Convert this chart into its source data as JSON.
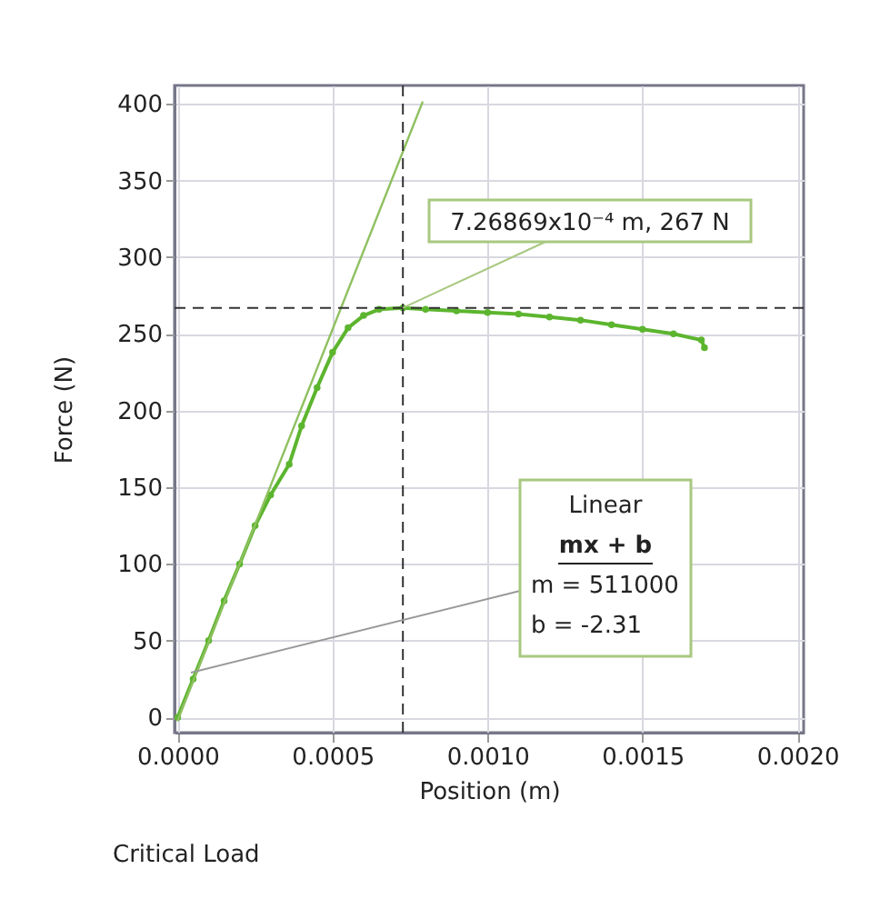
{
  "chart_data": {
    "type": "line",
    "xlabel": "Position (m)",
    "ylabel": "Force (N)",
    "xlim": [
      -1e-05,
      0.00202
    ],
    "ylim": [
      -10,
      412
    ],
    "xticks": [
      {
        "value": 0,
        "label": "0.0000"
      },
      0.0005,
      {
        "value": 0.001,
        "label": "0.0010"
      },
      0.0015,
      {
        "value": 0.002,
        "label": "0.0020"
      }
    ],
    "yticks": [
      0,
      50,
      100,
      150,
      200,
      250,
      300,
      350,
      400
    ],
    "grid": true,
    "marker": "circle",
    "line_style": "solid",
    "series": [
      {
        "color": "#5cb52e",
        "x": [
          0,
          5e-05,
          0.0001,
          0.00015,
          0.0002,
          0.00025,
          0.0003,
          0.00036,
          0.0004,
          0.00045,
          0.0005,
          0.00055,
          0.0006,
          0.00065,
          0.000727,
          0.0008,
          0.0009,
          0.001,
          0.0011,
          0.0012,
          0.0013,
          0.0014,
          0.0015,
          0.0016,
          0.00169,
          0.0017
        ],
        "values": [
          0,
          25,
          50,
          76,
          100,
          125,
          145,
          165,
          190,
          215,
          238,
          254,
          262,
          266,
          267,
          266,
          265,
          264,
          263,
          261,
          259,
          256,
          253,
          250,
          246,
          241
        ]
      },
      {
        "type": "line",
        "marker": "none",
        "color": "#8fc060",
        "x": [
          0,
          0.00079
        ],
        "values": [
          -2,
          401
        ]
      }
    ],
    "ref_lines": [
      {
        "axis": "x",
        "value": 0.000726869,
        "line_style": "dashed",
        "color": "#333333"
      },
      {
        "axis": "y",
        "value": 267,
        "line_style": "dashed",
        "color": "#333333"
      }
    ],
    "annotations": [
      {
        "text": "7.26869x10⁻⁴ m, 267 N",
        "x": 0.000727,
        "y": 267
      },
      "Linear",
      "mx + b",
      "m = 511000",
      "b  = -2.31",
      "Critical Load"
    ]
  }
}
